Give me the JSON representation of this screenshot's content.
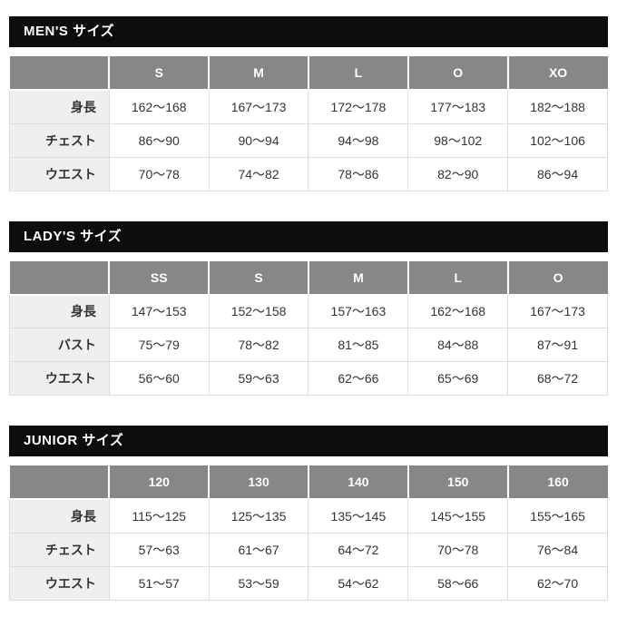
{
  "sections": [
    {
      "title": "MEN'S サイズ",
      "columns": [
        "S",
        "M",
        "L",
        "O",
        "XO"
      ],
      "rows": [
        {
          "label": "身長",
          "values": [
            "162〜168",
            "167〜173",
            "172〜178",
            "177〜183",
            "182〜188"
          ]
        },
        {
          "label": "チェスト",
          "values": [
            "86〜90",
            "90〜94",
            "94〜98",
            "98〜102",
            "102〜106"
          ]
        },
        {
          "label": "ウエスト",
          "values": [
            "70〜78",
            "74〜82",
            "78〜86",
            "82〜90",
            "86〜94"
          ]
        }
      ]
    },
    {
      "title": "LADY'S サイズ",
      "columns": [
        "SS",
        "S",
        "M",
        "L",
        "O"
      ],
      "rows": [
        {
          "label": "身長",
          "values": [
            "147〜153",
            "152〜158",
            "157〜163",
            "162〜168",
            "167〜173"
          ]
        },
        {
          "label": "バスト",
          "values": [
            "75〜79",
            "78〜82",
            "81〜85",
            "84〜88",
            "87〜91"
          ]
        },
        {
          "label": "ウエスト",
          "values": [
            "56〜60",
            "59〜63",
            "62〜66",
            "65〜69",
            "68〜72"
          ]
        }
      ]
    },
    {
      "title": "JUNIOR サイズ",
      "columns": [
        "120",
        "130",
        "140",
        "150",
        "160"
      ],
      "rows": [
        {
          "label": "身長",
          "values": [
            "115〜125",
            "125〜135",
            "135〜145",
            "145〜155",
            "155〜165"
          ]
        },
        {
          "label": "チェスト",
          "values": [
            "57〜63",
            "61〜67",
            "64〜72",
            "70〜78",
            "76〜84"
          ]
        },
        {
          "label": "ウエスト",
          "values": [
            "51〜57",
            "53〜59",
            "54〜62",
            "58〜66",
            "62〜70"
          ]
        }
      ]
    }
  ],
  "colors": {
    "title_bar_bg": "#0d0d0d",
    "title_bar_text": "#ffffff",
    "header_bg": "#878787",
    "header_text": "#ffffff",
    "label_bg": "#efefef",
    "cell_bg": "#ffffff",
    "border": "#dddddd",
    "text": "#333333",
    "page_bg": "#ffffff"
  }
}
